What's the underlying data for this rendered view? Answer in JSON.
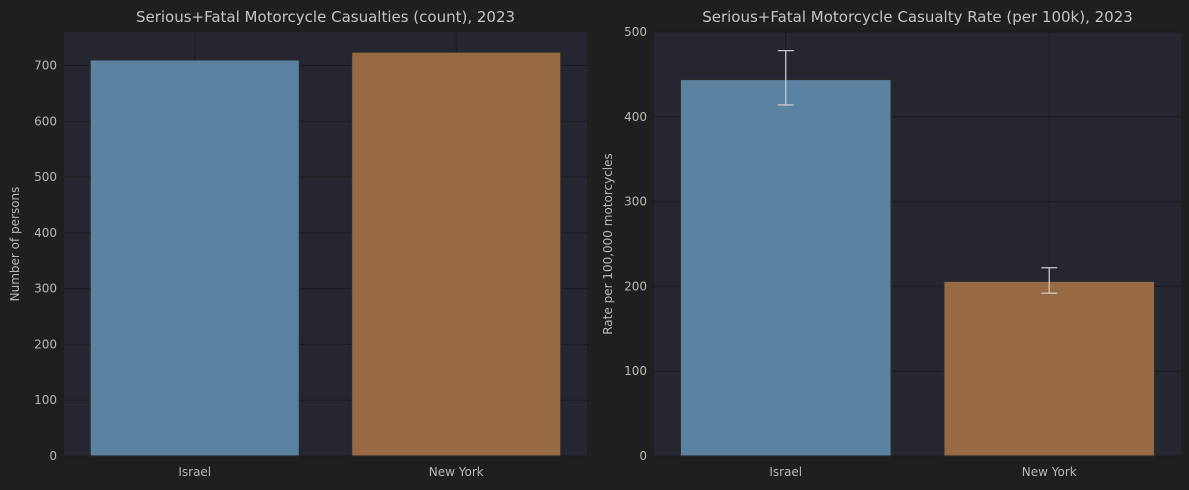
{
  "chart_data": [
    {
      "type": "bar",
      "title": "Serious+Fatal Motorcycle Casualties (count), 2023",
      "xlabel": "",
      "ylabel": "Number of persons",
      "categories": [
        "Israel",
        "New York"
      ],
      "values": [
        710,
        724
      ],
      "ylim": [
        0,
        760
      ],
      "yticks": [
        0,
        100,
        200,
        300,
        400,
        500,
        600,
        700
      ],
      "colors": [
        "#5b82a0",
        "#976a43"
      ],
      "grid": true
    },
    {
      "type": "bar",
      "title": "Serious+Fatal Motorcycle Casualty Rate (per 100k), 2023",
      "xlabel": "",
      "ylabel": "Rate per 100,000 motorcycles",
      "categories": [
        "Israel",
        "New York"
      ],
      "values": [
        444,
        206
      ],
      "error_low": [
        414,
        192
      ],
      "error_high": [
        478,
        222
      ],
      "ylim": [
        0,
        500
      ],
      "yticks": [
        0,
        100,
        200,
        300,
        400,
        500
      ],
      "colors": [
        "#5b82a0",
        "#976a43"
      ],
      "grid": true
    }
  ]
}
